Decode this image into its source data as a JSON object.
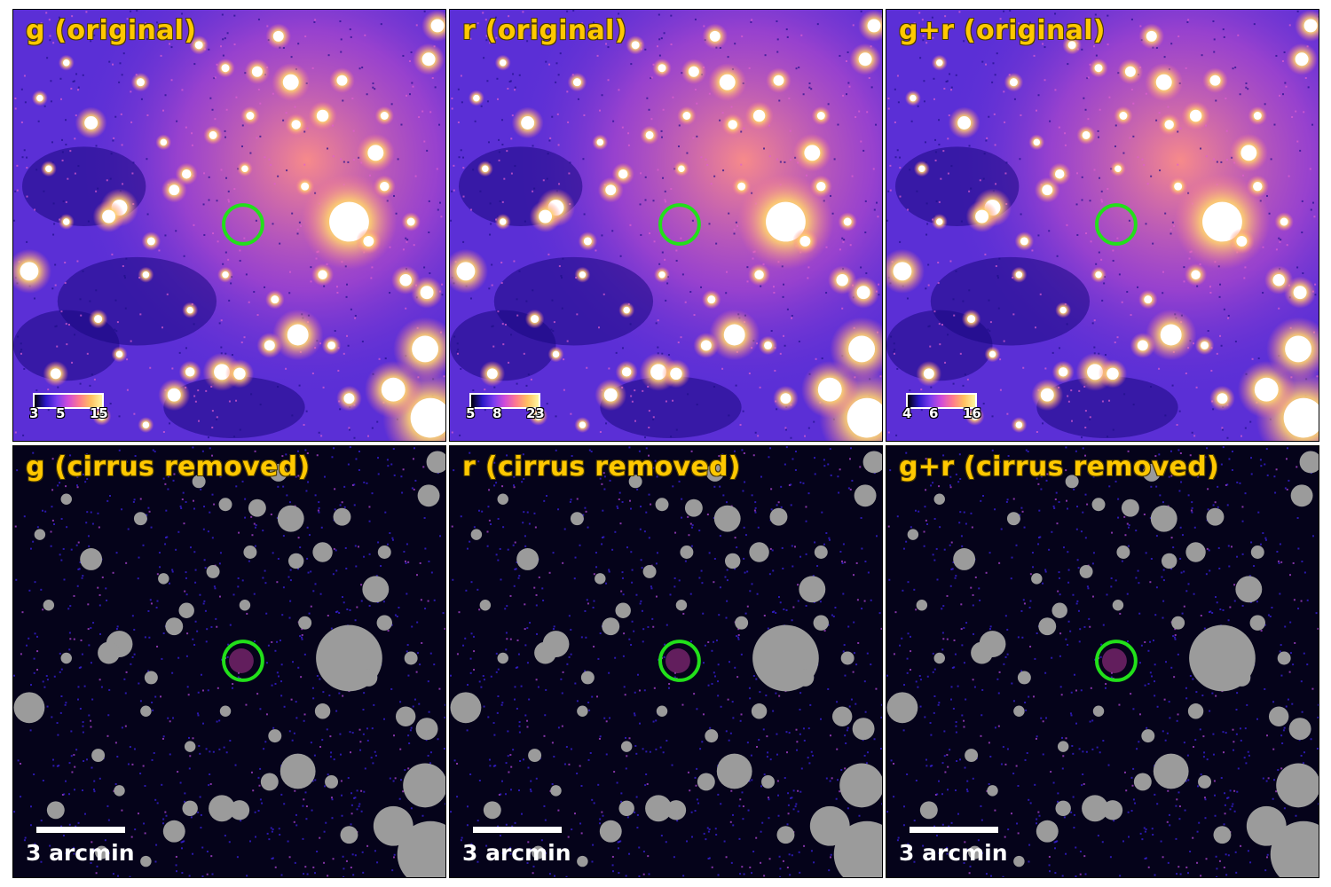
{
  "panels": [
    {
      "title": "g (original)",
      "type": "original",
      "cbar_ticks": [
        "3",
        "5",
        "15"
      ]
    },
    {
      "title": "r (original)",
      "type": "original",
      "cbar_ticks": [
        "5",
        "8",
        "23"
      ]
    },
    {
      "title": "g+r (original)",
      "type": "original",
      "cbar_ticks": [
        "4",
        "6",
        "16"
      ]
    },
    {
      "title": "g (cirrus removed)",
      "type": "removed",
      "scale_label": "3 arcmin"
    },
    {
      "title": "r (cirrus removed)",
      "type": "removed",
      "scale_label": "3 arcmin"
    },
    {
      "title": "g+r (cirrus removed)",
      "type": "removed",
      "scale_label": "3 arcmin"
    }
  ],
  "colors": {
    "title_text": "#ffc800",
    "target_circle": "#22e01a",
    "mask_gray": "#9b9b9b",
    "original_background": "#5b2fd6",
    "removed_background": "#05031a"
  },
  "icons": {
    "target_marker": "circle-marker-icon"
  }
}
